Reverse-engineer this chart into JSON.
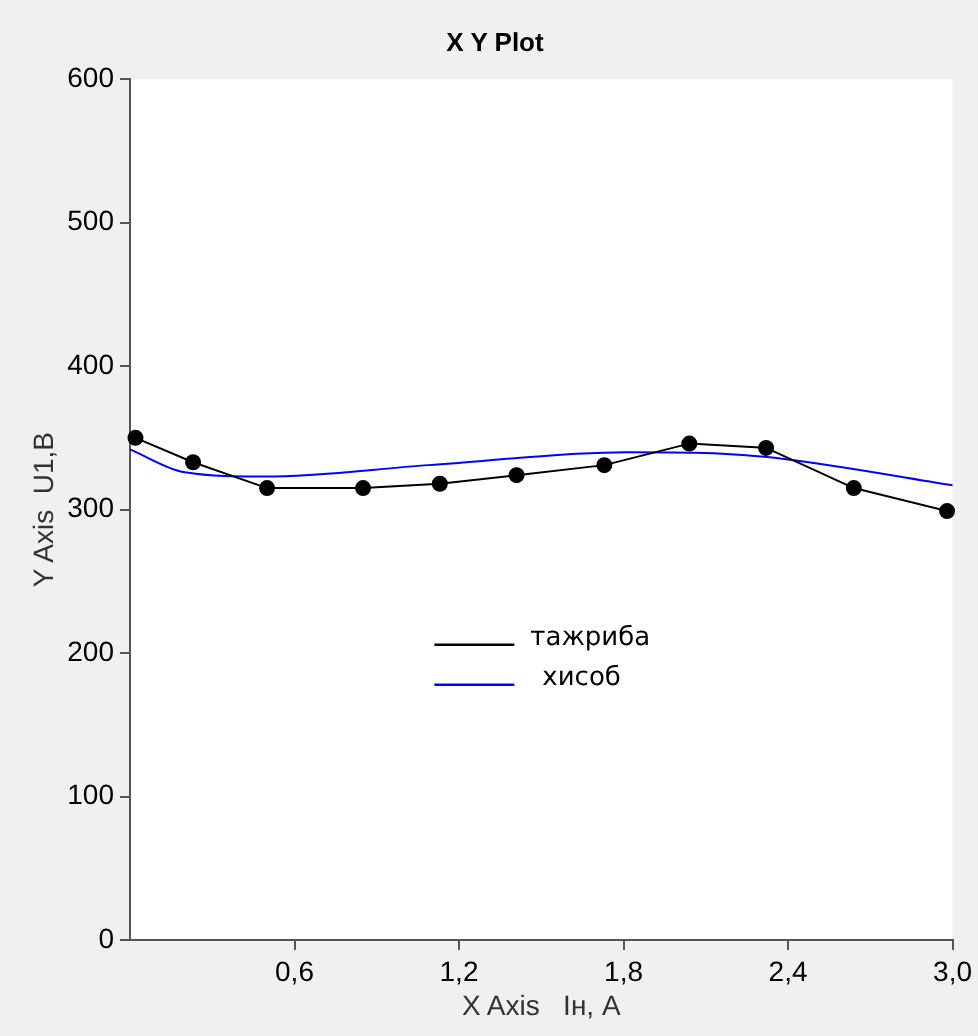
{
  "chart_data": {
    "type": "line",
    "title": "X Y Plot",
    "xlabel": "X Axis   Iн, A",
    "ylabel": "Y Axis  U1,B",
    "xlim": [
      0,
      3.0
    ],
    "xticks": [
      {
        "value": 0.6,
        "label": "0,6"
      },
      {
        "value": 1.2,
        "label": "1,2"
      },
      {
        "value": 1.8,
        "label": "1,8"
      },
      {
        "value": 2.4,
        "label": "2,4"
      },
      {
        "value": 3.0,
        "label": "3,0"
      }
    ],
    "ylim": [
      0,
      600
    ],
    "yticks": [
      0,
      100,
      200,
      300,
      400,
      500,
      600
    ],
    "grid": false,
    "legend": "center",
    "series": [
      {
        "name": "тажриба",
        "color": "#000000",
        "marker": "circle",
        "x": [
          0.02,
          0.23,
          0.5,
          0.85,
          1.13,
          1.41,
          1.73,
          2.04,
          2.32,
          2.64,
          2.98
        ],
        "values": [
          350,
          333,
          315,
          315,
          318,
          324,
          331,
          346,
          343,
          315,
          299
        ]
      },
      {
        "name": "хисоб",
        "color": "#0000ff",
        "marker": "none",
        "x": [
          0.0,
          0.2,
          0.49,
          1.09,
          1.81,
          2.16,
          2.4,
          3.0
        ],
        "values": [
          342,
          326,
          323,
          331,
          340,
          339,
          335,
          317
        ]
      }
    ]
  }
}
